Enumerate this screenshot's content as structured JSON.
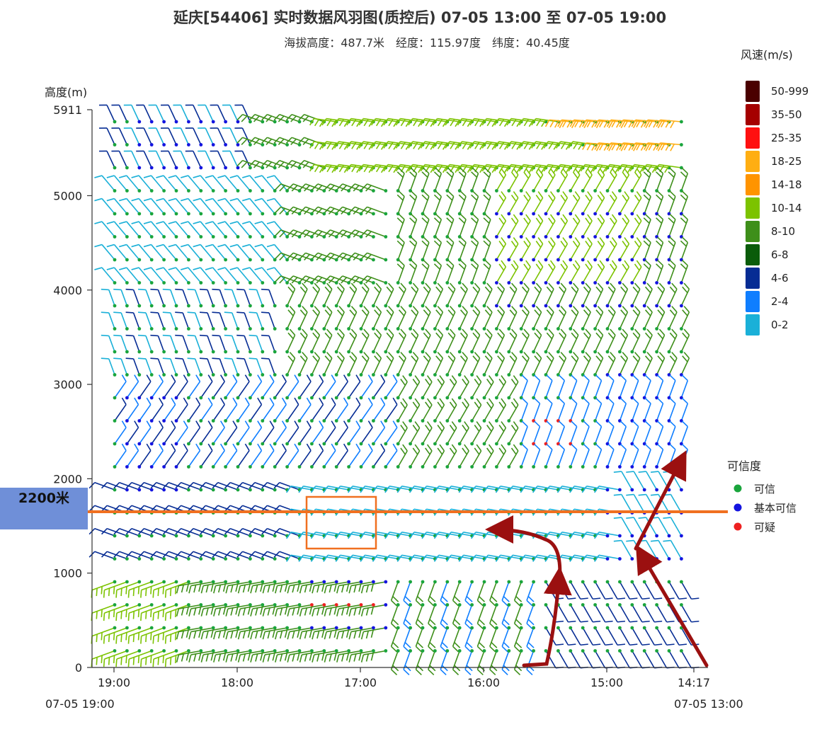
{
  "title": "延庆[54406] 实时数据风羽图(质控后) 07-05 13:00 至 07-05 19:00",
  "subtitle": "海拔高度：487.7米　经度：115.97度　纬度：40.45度",
  "annotation": {
    "label": "2200米",
    "line_color": "#f07020",
    "box_color": "#f07020",
    "label_bg": "#6f8fd8"
  },
  "arrow_color": "#9b1010",
  "chart_data": {
    "type": "wind_barb",
    "ylabel": "高度(m)",
    "y_ticks": [
      0,
      1000,
      2000,
      3000,
      4000,
      5000,
      5911
    ],
    "ylim": [
      0,
      5911
    ],
    "x_ticks": [
      "19:00",
      "18:00",
      "17:00",
      "16:00",
      "15:00",
      "14:17"
    ],
    "x_start_label": "07-05 19:00",
    "x_end_label": "07-05 13:00",
    "speed_legend": {
      "title": "风速(m/s)",
      "items": [
        {
          "label": "50-999",
          "color": "#4a0000"
        },
        {
          "label": "35-50",
          "color": "#a50000"
        },
        {
          "label": "25-35",
          "color": "#ff1010"
        },
        {
          "label": "18-25",
          "color": "#ffae12"
        },
        {
          "label": "14-18",
          "color": "#ff9400"
        },
        {
          "label": "10-14",
          "color": "#7cc300"
        },
        {
          "label": "8-10",
          "color": "#3e8f1a"
        },
        {
          "label": "6-8",
          "color": "#0a5c0a"
        },
        {
          "label": "4-6",
          "color": "#062c94"
        },
        {
          "label": "2-4",
          "color": "#0f7eff"
        },
        {
          "label": "0-2",
          "color": "#1ab0d8"
        }
      ]
    },
    "confidence_legend": {
      "title": "可信度",
      "items": [
        {
          "label": "可信",
          "color": "#1aa53c"
        },
        {
          "label": "基本可信",
          "color": "#1414e0"
        },
        {
          "label": "可疑",
          "color": "#ee2020"
        }
      ]
    }
  }
}
